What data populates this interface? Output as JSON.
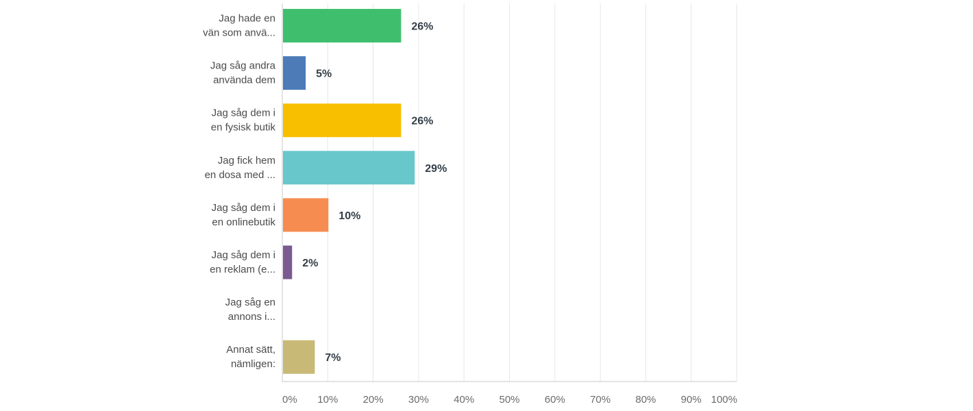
{
  "chart_data": {
    "type": "bar",
    "orientation": "horizontal",
    "title": "",
    "xlabel": "",
    "ylabel": "",
    "xlim": [
      0,
      100
    ],
    "grid": true,
    "legend": "none",
    "categories": [
      [
        "Jag hade en",
        "vän som anvä..."
      ],
      [
        "Jag såg andra",
        "använda dem"
      ],
      [
        "Jag såg dem i",
        "en fysisk butik"
      ],
      [
        "Jag fick hem",
        "en dosa med ..."
      ],
      [
        "Jag såg dem i",
        "en onlinebutik"
      ],
      [
        "Jag såg dem i",
        "en reklam (e..."
      ],
      [
        "Jag såg en",
        "annons i..."
      ],
      [
        "Annat sätt,",
        "nämligen:"
      ]
    ],
    "values": [
      26,
      5,
      26,
      29,
      10,
      2,
      0,
      7
    ],
    "value_labels": [
      "26%",
      "5%",
      "26%",
      "29%",
      "10%",
      "2%",
      "",
      "7%"
    ],
    "colors": [
      "#3fbf6d",
      "#4c7bb8",
      "#f7bf00",
      "#68c7cb",
      "#f78c50",
      "#7a5a91",
      "#bbbbbb",
      "#c8b977"
    ],
    "ticks": [
      "0%",
      "10%",
      "20%",
      "30%",
      "40%",
      "50%",
      "60%",
      "70%",
      "80%",
      "90%",
      "100%"
    ]
  }
}
